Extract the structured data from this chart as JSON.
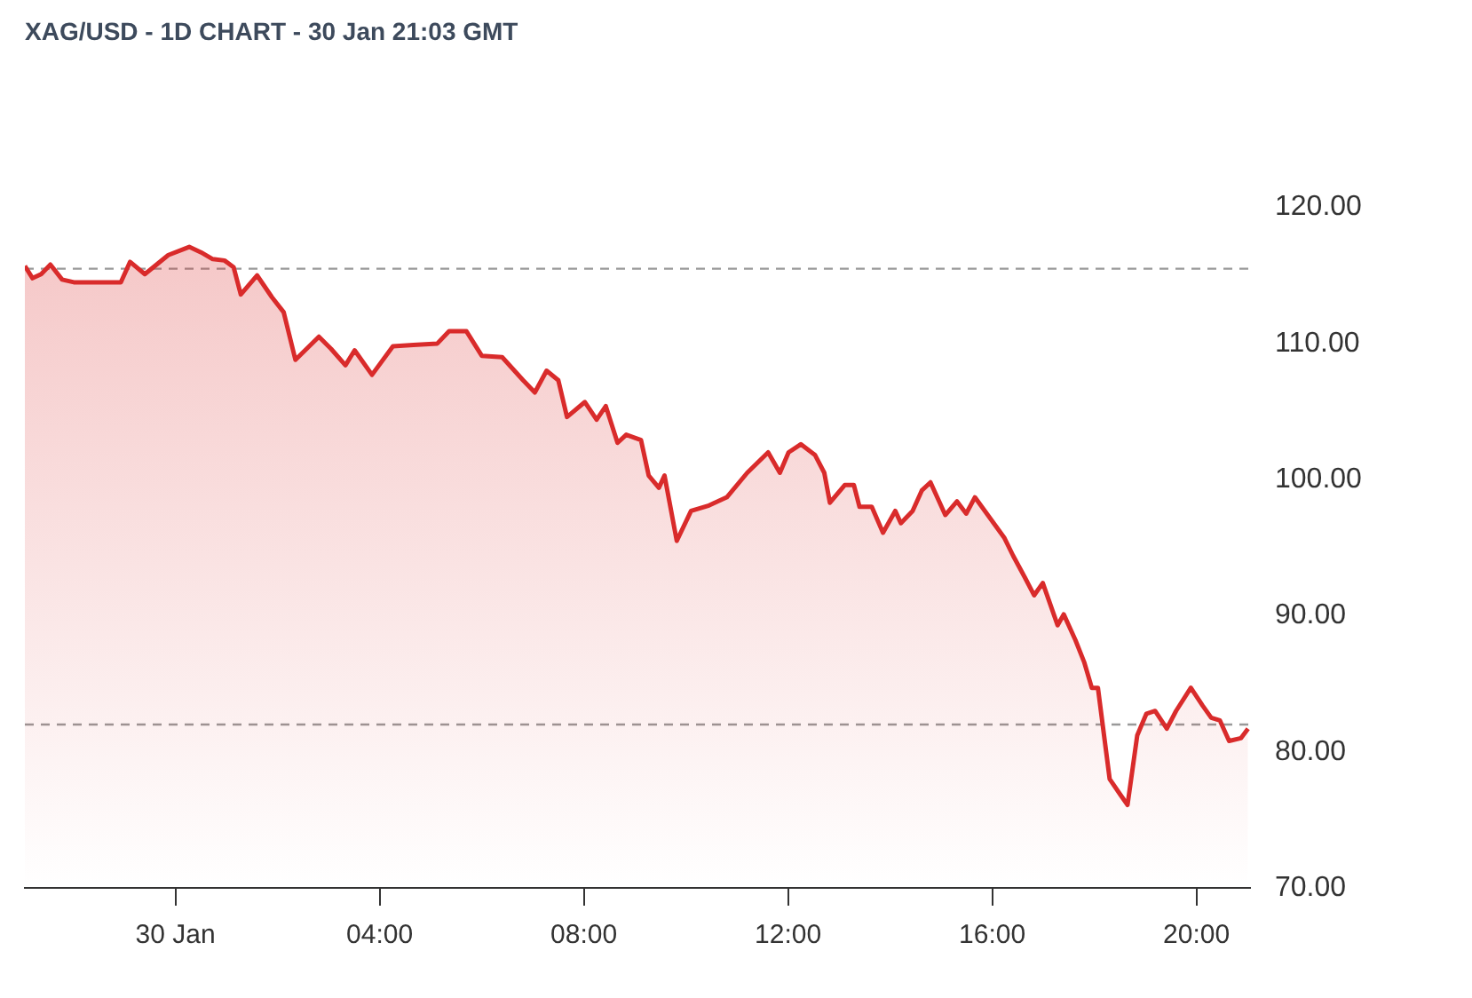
{
  "chart_data": {
    "type": "area",
    "title": "XAG/USD - 1D CHART - 30 Jan 21:03 GMT",
    "xlim": [
      -2.95,
      21.05
    ],
    "xticks": [
      {
        "value": 0,
        "label": "30 Jan"
      },
      {
        "value": 4,
        "label": "04:00"
      },
      {
        "value": 8,
        "label": "08:00"
      },
      {
        "value": 12,
        "label": "12:00"
      },
      {
        "value": 16,
        "label": "16:00"
      },
      {
        "value": 20,
        "label": "20:00"
      }
    ],
    "ylim": [
      70,
      120
    ],
    "yticks": [
      {
        "value": 70,
        "label": "70.00"
      },
      {
        "value": 80,
        "label": "80.00"
      },
      {
        "value": 90,
        "label": "90.00"
      },
      {
        "value": 100,
        "label": "100.00"
      },
      {
        "value": 110,
        "label": "110.00"
      },
      {
        "value": 120,
        "label": "120.00"
      }
    ],
    "grid": false,
    "legend": false,
    "marker": "none",
    "line_style": "solid",
    "ref_lines": [
      {
        "axis": "y",
        "value": 115.5,
        "color": "#999999",
        "line_style": "dashed"
      },
      {
        "axis": "y",
        "value": 82.0,
        "color": "#999999",
        "line_style": "dashed"
      }
    ],
    "series": [
      {
        "color": "#d92b2b",
        "x": [
          -2.95,
          -2.8,
          -2.63,
          -2.45,
          -2.22,
          -1.99,
          -1.07,
          -0.89,
          -0.6,
          -0.14,
          0.27,
          0.5,
          0.73,
          0.96,
          1.14,
          1.28,
          1.6,
          1.89,
          2.12,
          2.35,
          2.81,
          3.05,
          3.33,
          3.51,
          3.85,
          4.26,
          4.66,
          5.13,
          5.36,
          5.7,
          6.0,
          6.4,
          6.81,
          7.04,
          7.27,
          7.5,
          7.67,
          8.02,
          8.25,
          8.43,
          8.66,
          8.83,
          9.12,
          9.27,
          9.47,
          9.58,
          9.82,
          10.1,
          10.45,
          10.8,
          11.2,
          11.61,
          11.84,
          12.01,
          12.25,
          12.53,
          12.71,
          12.82,
          13.11,
          13.29,
          13.4,
          13.64,
          13.86,
          14.1,
          14.21,
          14.44,
          14.62,
          14.79,
          15.08,
          15.31,
          15.49,
          15.66,
          15.95,
          16.24,
          16.41,
          16.64,
          16.82,
          16.99,
          17.28,
          17.4,
          17.63,
          17.8,
          17.95,
          18.07,
          18.3,
          18.5,
          18.65,
          18.84,
          19.02,
          19.19,
          19.42,
          19.6,
          19.89,
          20.12,
          20.29,
          20.46,
          20.64,
          20.87,
          21.01
        ],
        "values": [
          115.7,
          114.8,
          115.1,
          115.8,
          114.7,
          114.5,
          114.5,
          116.0,
          115.1,
          116.5,
          117.1,
          116.7,
          116.2,
          116.1,
          115.6,
          113.6,
          115.0,
          113.4,
          112.3,
          108.8,
          110.5,
          109.6,
          108.4,
          109.5,
          107.7,
          109.8,
          109.9,
          110.0,
          110.9,
          110.9,
          109.1,
          109.0,
          107.3,
          106.4,
          108.0,
          107.3,
          104.6,
          105.7,
          104.4,
          105.4,
          102.7,
          103.3,
          102.9,
          100.3,
          99.4,
          100.3,
          95.5,
          97.7,
          98.1,
          98.7,
          100.5,
          102.0,
          100.5,
          102.0,
          102.6,
          101.8,
          100.5,
          98.3,
          99.6,
          99.6,
          98.0,
          98.0,
          96.1,
          97.7,
          96.8,
          97.7,
          99.2,
          99.8,
          97.4,
          98.4,
          97.5,
          98.7,
          97.2,
          95.7,
          94.4,
          92.8,
          91.5,
          92.4,
          89.3,
          90.1,
          88.2,
          86.6,
          84.7,
          84.7,
          78.0,
          76.9,
          76.1,
          81.2,
          82.8,
          83.0,
          81.7,
          83.0,
          84.7,
          83.4,
          82.5,
          82.3,
          80.8,
          81.0,
          81.7
        ]
      }
    ]
  }
}
